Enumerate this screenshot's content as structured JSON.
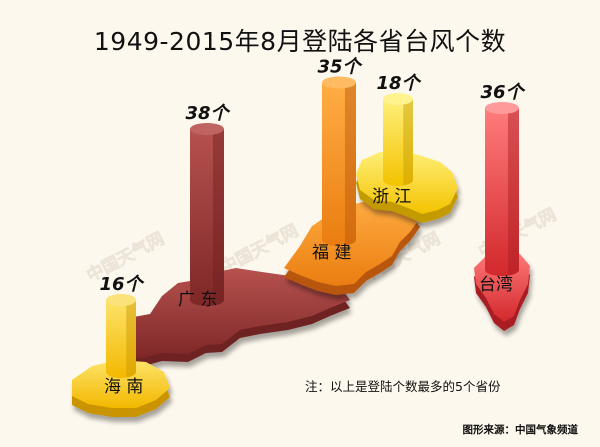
{
  "page": {
    "title": "1949-2015年8月登陆各省台风个数",
    "note": "注：以上是登陆个数最多的5个省份",
    "source": "图形来源：中国气象频道",
    "watermark": "中国天气网"
  },
  "chart_data": {
    "type": "bar",
    "title": "1949-2015年8月登陆各省台风个数",
    "categories": [
      "海南",
      "广东",
      "福建",
      "浙江",
      "台湾"
    ],
    "region_labels": [
      "海 南",
      "广 东",
      "福 建",
      "浙 江",
      "台湾"
    ],
    "values": [
      16,
      38,
      35,
      18,
      36
    ],
    "value_labels": [
      "16个",
      "38个",
      "35个",
      "18个",
      "36个"
    ],
    "colors": [
      "#f6c80e",
      "#8e2f2f",
      "#d9640c",
      "#f5c20f",
      "#e8474a"
    ],
    "ylim": [
      0,
      40
    ],
    "grid": false
  }
}
